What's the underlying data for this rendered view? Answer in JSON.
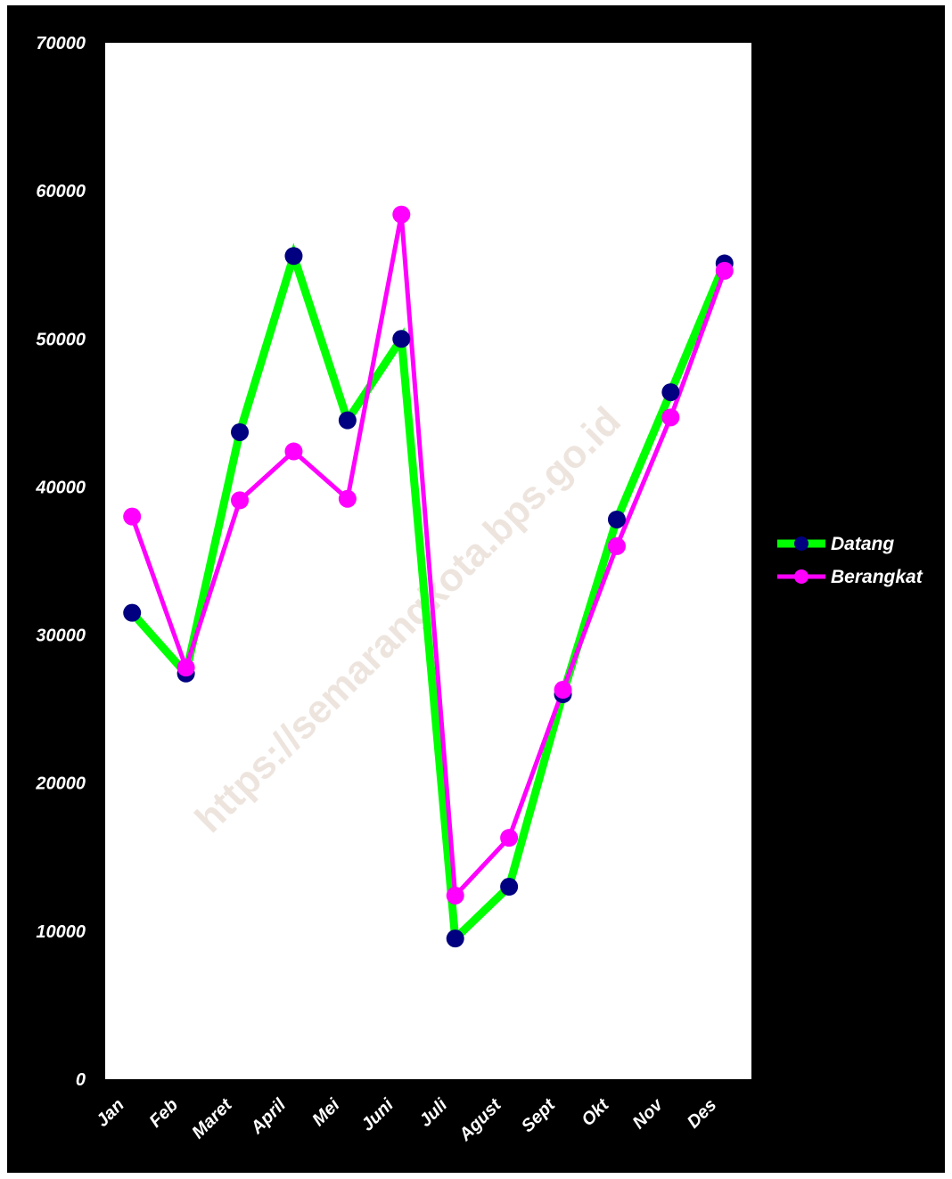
{
  "watermark": "https://semarangkota.bps.go.id",
  "chart_data": {
    "type": "line",
    "title": "",
    "xlabel": "",
    "ylabel": "",
    "categories": [
      "Jan",
      "Feb",
      "Maret",
      "April",
      "Mei",
      "Juni",
      "Juli",
      "Agust",
      "Sept",
      "Okt",
      "Nov",
      "Des"
    ],
    "ylim": [
      0,
      70000
    ],
    "yticks": [
      0,
      10000,
      20000,
      30000,
      40000,
      50000,
      60000,
      70000
    ],
    "grid": false,
    "legend_position": "right",
    "series": [
      {
        "name": "Datang",
        "line_color": "#00ff00",
        "marker_color": "#000080",
        "values": [
          31500,
          27400,
          43700,
          55600,
          44500,
          50000,
          9500,
          13000,
          26000,
          37800,
          46400,
          55100
        ]
      },
      {
        "name": "Berangkat",
        "line_color": "#ff00ff",
        "marker_color": "#ff00ff",
        "values": [
          38000,
          27800,
          39100,
          42400,
          39200,
          58400,
          12400,
          16300,
          26300,
          36000,
          44700,
          54600
        ]
      }
    ]
  },
  "colors": {
    "background": "#000000",
    "plot_area": "#ffffff",
    "text": "#ffffff"
  }
}
